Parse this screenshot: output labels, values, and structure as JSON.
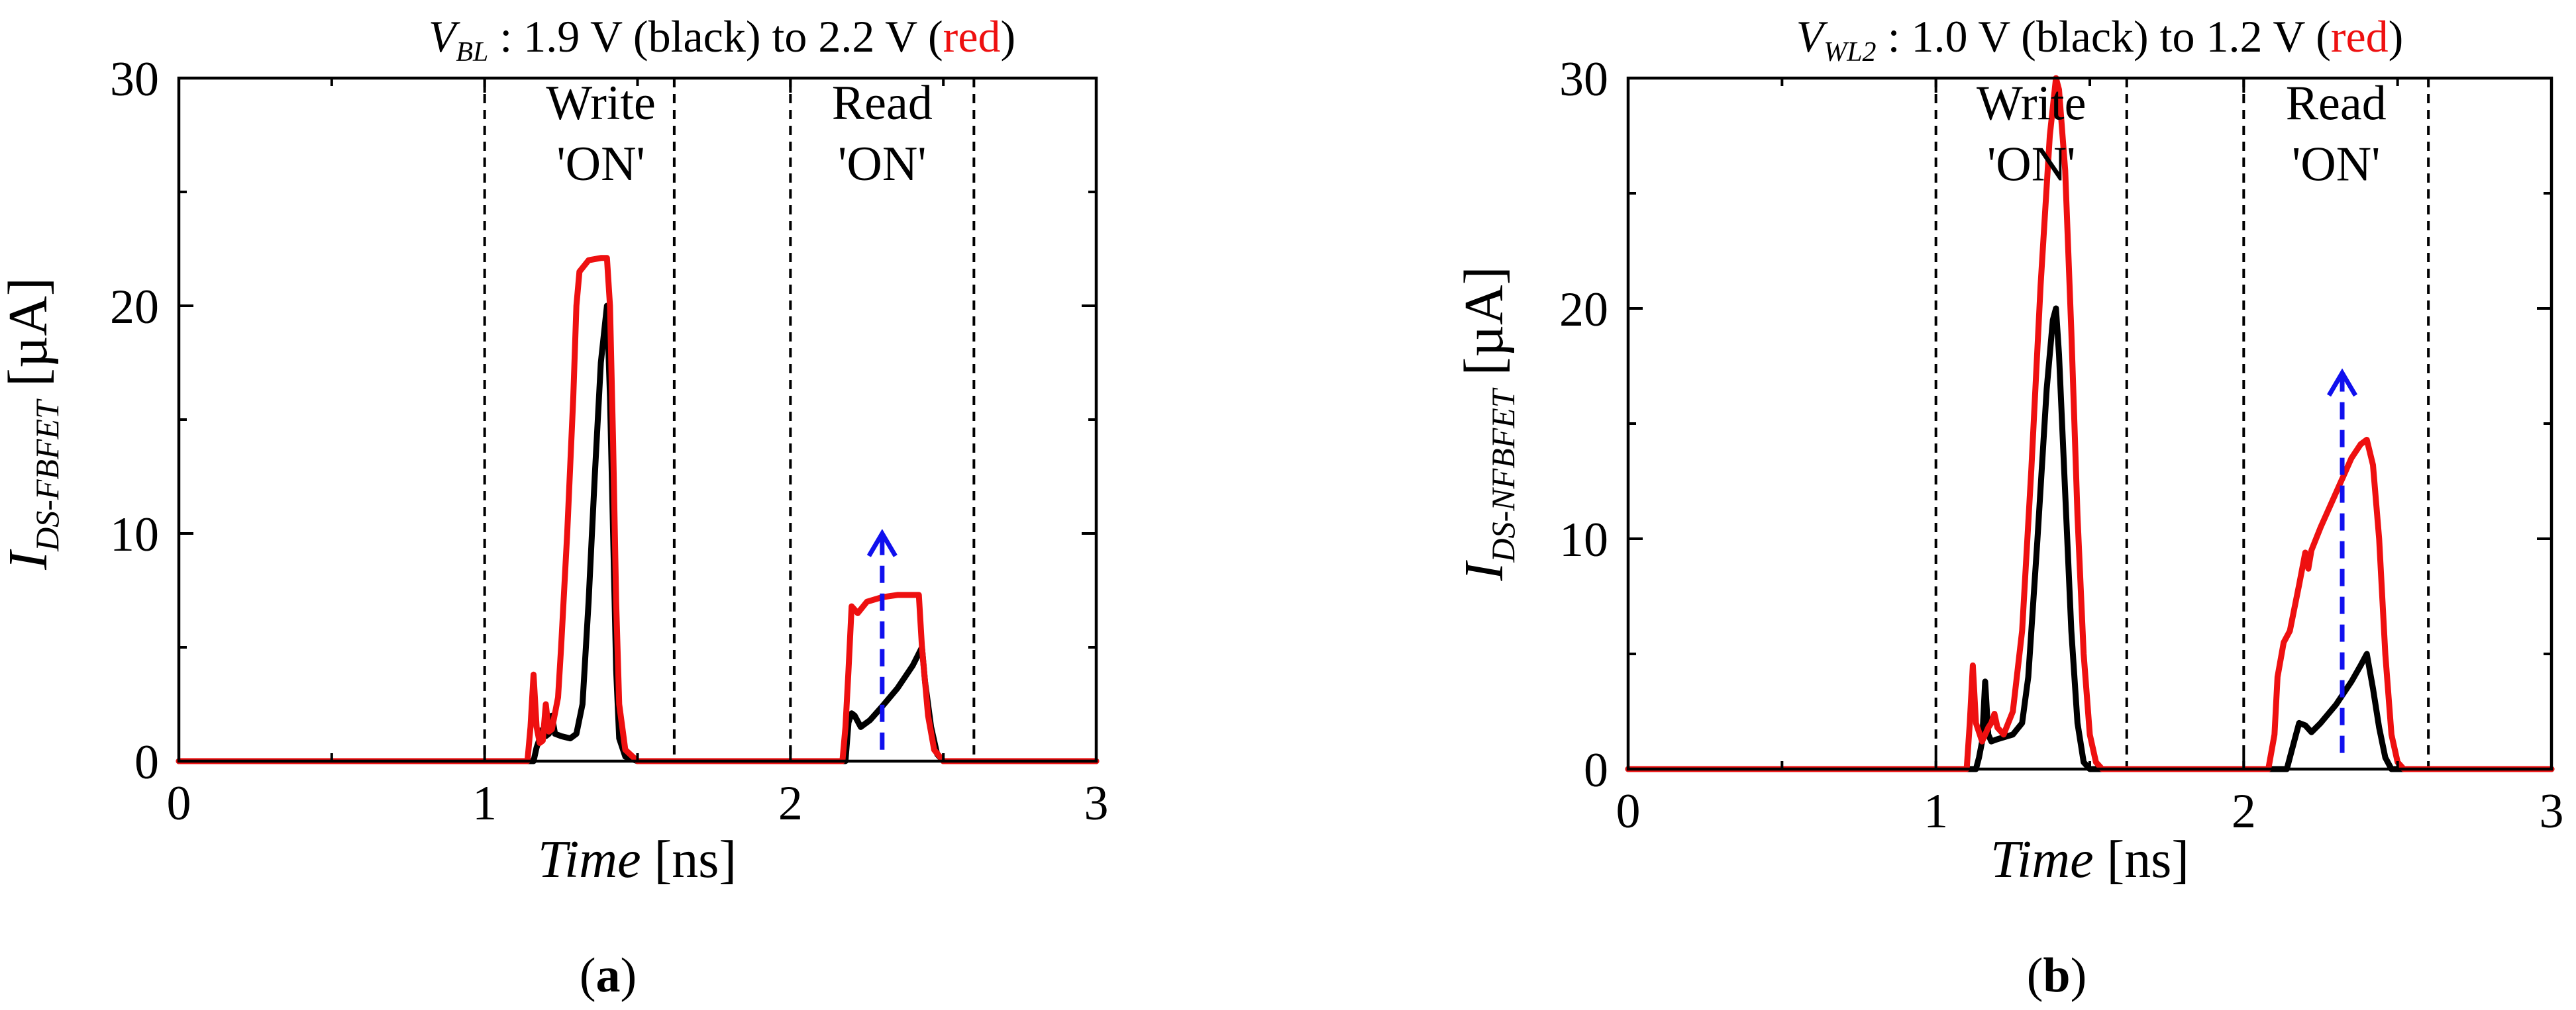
{
  "chart_data": [
    {
      "id": "a",
      "type": "line",
      "caption": {
        "label": "a"
      },
      "title": {
        "var_main": "V",
        "var_sub": "BL",
        "middle": " : 1.9 V (black) to 2.2 V (",
        "red_word": "red",
        "end": ")"
      },
      "xlabel": {
        "var": "Time",
        "unit": " [ns]"
      },
      "ylabel": {
        "main": "I",
        "sub": "DS-FBFET",
        "unit": " [µA]"
      },
      "xlim": [
        0,
        3
      ],
      "ylim": [
        0,
        30
      ],
      "xticks": [
        0,
        1,
        2,
        3
      ],
      "yticks": [
        0,
        10,
        20,
        30
      ],
      "minor_xticks": [
        0.5,
        1.5,
        2.5
      ],
      "minor_yticks": [
        5,
        15,
        25
      ],
      "dashed_vlines": [
        1.0,
        1.62,
        2.0,
        2.6
      ],
      "annotations": [
        {
          "lines": [
            "Write",
            "'ON'"
          ],
          "x": 1.38,
          "y_top": 28.2
        },
        {
          "lines": [
            "Read",
            "'ON'"
          ],
          "x": 2.3,
          "y_top": 28.2
        }
      ],
      "arrow": {
        "x": 2.3,
        "y_from": 0.5,
        "y_to": 10.0,
        "color": "#1010ee"
      },
      "series": [
        {
          "color": "#000000",
          "points": [
            [
              0,
              0
            ],
            [
              1.16,
              0
            ],
            [
              1.17,
              0.6
            ],
            [
              1.18,
              1.0
            ],
            [
              1.19,
              1.4
            ],
            [
              1.2,
              1.1
            ],
            [
              1.21,
              1.2
            ],
            [
              1.22,
              2.0
            ],
            [
              1.23,
              1.2
            ],
            [
              1.25,
              1.1
            ],
            [
              1.28,
              1.0
            ],
            [
              1.3,
              1.2
            ],
            [
              1.32,
              2.5
            ],
            [
              1.34,
              7.0
            ],
            [
              1.36,
              12.5
            ],
            [
              1.38,
              17.5
            ],
            [
              1.4,
              20.0
            ],
            [
              1.41,
              16.0
            ],
            [
              1.42,
              10.0
            ],
            [
              1.43,
              4.0
            ],
            [
              1.44,
              1.0
            ],
            [
              1.46,
              0.2
            ],
            [
              1.5,
              0
            ],
            [
              2.18,
              0
            ],
            [
              2.19,
              1.7
            ],
            [
              2.2,
              2.1
            ],
            [
              2.21,
              2.0
            ],
            [
              2.23,
              1.5
            ],
            [
              2.26,
              1.8
            ],
            [
              2.3,
              2.4
            ],
            [
              2.35,
              3.2
            ],
            [
              2.4,
              4.2
            ],
            [
              2.43,
              5.0
            ],
            [
              2.44,
              3.5
            ],
            [
              2.46,
              1.5
            ],
            [
              2.48,
              0.3
            ],
            [
              2.5,
              0
            ],
            [
              3,
              0
            ]
          ]
        },
        {
          "color": "#ee1010",
          "points": [
            [
              0,
              0
            ],
            [
              1.14,
              0
            ],
            [
              1.15,
              1.5
            ],
            [
              1.16,
              3.8
            ],
            [
              1.17,
              1.5
            ],
            [
              1.18,
              0.8
            ],
            [
              1.19,
              0.9
            ],
            [
              1.2,
              2.5
            ],
            [
              1.21,
              1.3
            ],
            [
              1.22,
              1.4
            ],
            [
              1.24,
              2.8
            ],
            [
              1.25,
              5.0
            ],
            [
              1.27,
              10.0
            ],
            [
              1.29,
              16.0
            ],
            [
              1.3,
              20.0
            ],
            [
              1.31,
              21.5
            ],
            [
              1.34,
              22.0
            ],
            [
              1.38,
              22.1
            ],
            [
              1.4,
              22.1
            ],
            [
              1.41,
              20.0
            ],
            [
              1.42,
              14.0
            ],
            [
              1.43,
              7.0
            ],
            [
              1.44,
              2.5
            ],
            [
              1.46,
              0.5
            ],
            [
              1.5,
              0
            ],
            [
              2.17,
              0
            ],
            [
              2.18,
              1.5
            ],
            [
              2.19,
              4.0
            ],
            [
              2.2,
              6.8
            ],
            [
              2.22,
              6.5
            ],
            [
              2.25,
              7.0
            ],
            [
              2.3,
              7.2
            ],
            [
              2.35,
              7.3
            ],
            [
              2.4,
              7.3
            ],
            [
              2.42,
              7.3
            ],
            [
              2.43,
              5.0
            ],
            [
              2.45,
              2.0
            ],
            [
              2.47,
              0.5
            ],
            [
              2.5,
              0
            ],
            [
              3,
              0
            ]
          ]
        }
      ]
    },
    {
      "id": "b",
      "type": "line",
      "caption": {
        "label": "b"
      },
      "title": {
        "var_main": "V",
        "var_sub": "WL2",
        "middle": "  :  1.0 V (black) to 1.2 V (",
        "red_word": "red",
        "end": ")"
      },
      "xlabel": {
        "var": "Time",
        "unit": " [ns]"
      },
      "ylabel": {
        "main": "I",
        "sub": "DS-NFBFET",
        "unit": " [µA]"
      },
      "xlim": [
        0,
        3
      ],
      "ylim": [
        0,
        30
      ],
      "xticks": [
        0,
        1,
        2,
        3
      ],
      "yticks": [
        0,
        10,
        20,
        30
      ],
      "minor_xticks": [
        0.5,
        1.5,
        2.5
      ],
      "minor_yticks": [
        5,
        15,
        25
      ],
      "dashed_vlines": [
        1.0,
        1.62,
        2.0,
        2.6
      ],
      "annotations": [
        {
          "lines": [
            "Write",
            "'ON'"
          ],
          "x": 1.31,
          "y_top": 28.2
        },
        {
          "lines": [
            "Read",
            "'ON'"
          ],
          "x": 2.3,
          "y_top": 28.2
        }
      ],
      "arrow": {
        "x": 2.32,
        "y_from": 0.7,
        "y_to": 17.2,
        "color": "#1010ee"
      },
      "series": [
        {
          "color": "#000000",
          "points": [
            [
              0,
              0
            ],
            [
              1.13,
              0
            ],
            [
              1.14,
              0.5
            ],
            [
              1.15,
              1.2
            ],
            [
              1.16,
              3.8
            ],
            [
              1.17,
              1.5
            ],
            [
              1.18,
              1.2
            ],
            [
              1.2,
              1.3
            ],
            [
              1.25,
              1.5
            ],
            [
              1.28,
              2.0
            ],
            [
              1.3,
              4.0
            ],
            [
              1.33,
              10.0
            ],
            [
              1.36,
              16.5
            ],
            [
              1.38,
              19.5
            ],
            [
              1.39,
              20.0
            ],
            [
              1.4,
              18.0
            ],
            [
              1.42,
              12.0
            ],
            [
              1.44,
              6.0
            ],
            [
              1.46,
              2.0
            ],
            [
              1.48,
              0.3
            ],
            [
              1.5,
              0
            ],
            [
              2.14,
              0
            ],
            [
              2.15,
              0.5
            ],
            [
              2.17,
              1.5
            ],
            [
              2.18,
              2.0
            ],
            [
              2.2,
              1.9
            ],
            [
              2.22,
              1.6
            ],
            [
              2.25,
              2.0
            ],
            [
              2.3,
              2.8
            ],
            [
              2.35,
              3.8
            ],
            [
              2.38,
              4.5
            ],
            [
              2.4,
              5.0
            ],
            [
              2.42,
              3.5
            ],
            [
              2.44,
              1.8
            ],
            [
              2.46,
              0.5
            ],
            [
              2.48,
              0
            ],
            [
              3,
              0
            ]
          ]
        },
        {
          "color": "#ee1010",
          "points": [
            [
              0,
              0
            ],
            [
              1.1,
              0
            ],
            [
              1.11,
              2.0
            ],
            [
              1.12,
              4.5
            ],
            [
              1.13,
              2.0
            ],
            [
              1.15,
              1.2
            ],
            [
              1.17,
              1.8
            ],
            [
              1.18,
              2.0
            ],
            [
              1.19,
              2.4
            ],
            [
              1.2,
              1.8
            ],
            [
              1.22,
              1.5
            ],
            [
              1.25,
              2.5
            ],
            [
              1.28,
              6.0
            ],
            [
              1.31,
              13.0
            ],
            [
              1.34,
              21.0
            ],
            [
              1.37,
              27.5
            ],
            [
              1.39,
              30.0
            ],
            [
              1.4,
              29.5
            ],
            [
              1.42,
              26.0
            ],
            [
              1.44,
              19.0
            ],
            [
              1.46,
              11.0
            ],
            [
              1.48,
              5.0
            ],
            [
              1.5,
              1.5
            ],
            [
              1.52,
              0.3
            ],
            [
              1.54,
              0
            ],
            [
              2.08,
              0
            ],
            [
              2.1,
              1.5
            ],
            [
              2.11,
              4.0
            ],
            [
              2.13,
              5.5
            ],
            [
              2.15,
              6.0
            ],
            [
              2.18,
              8.0
            ],
            [
              2.2,
              9.4
            ],
            [
              2.21,
              8.7
            ],
            [
              2.22,
              9.5
            ],
            [
              2.25,
              10.5
            ],
            [
              2.3,
              12.0
            ],
            [
              2.35,
              13.5
            ],
            [
              2.38,
              14.1
            ],
            [
              2.4,
              14.3
            ],
            [
              2.42,
              13.2
            ],
            [
              2.44,
              10.0
            ],
            [
              2.46,
              5.0
            ],
            [
              2.48,
              1.5
            ],
            [
              2.5,
              0.3
            ],
            [
              2.52,
              0
            ],
            [
              3,
              0
            ]
          ]
        }
      ]
    }
  ]
}
